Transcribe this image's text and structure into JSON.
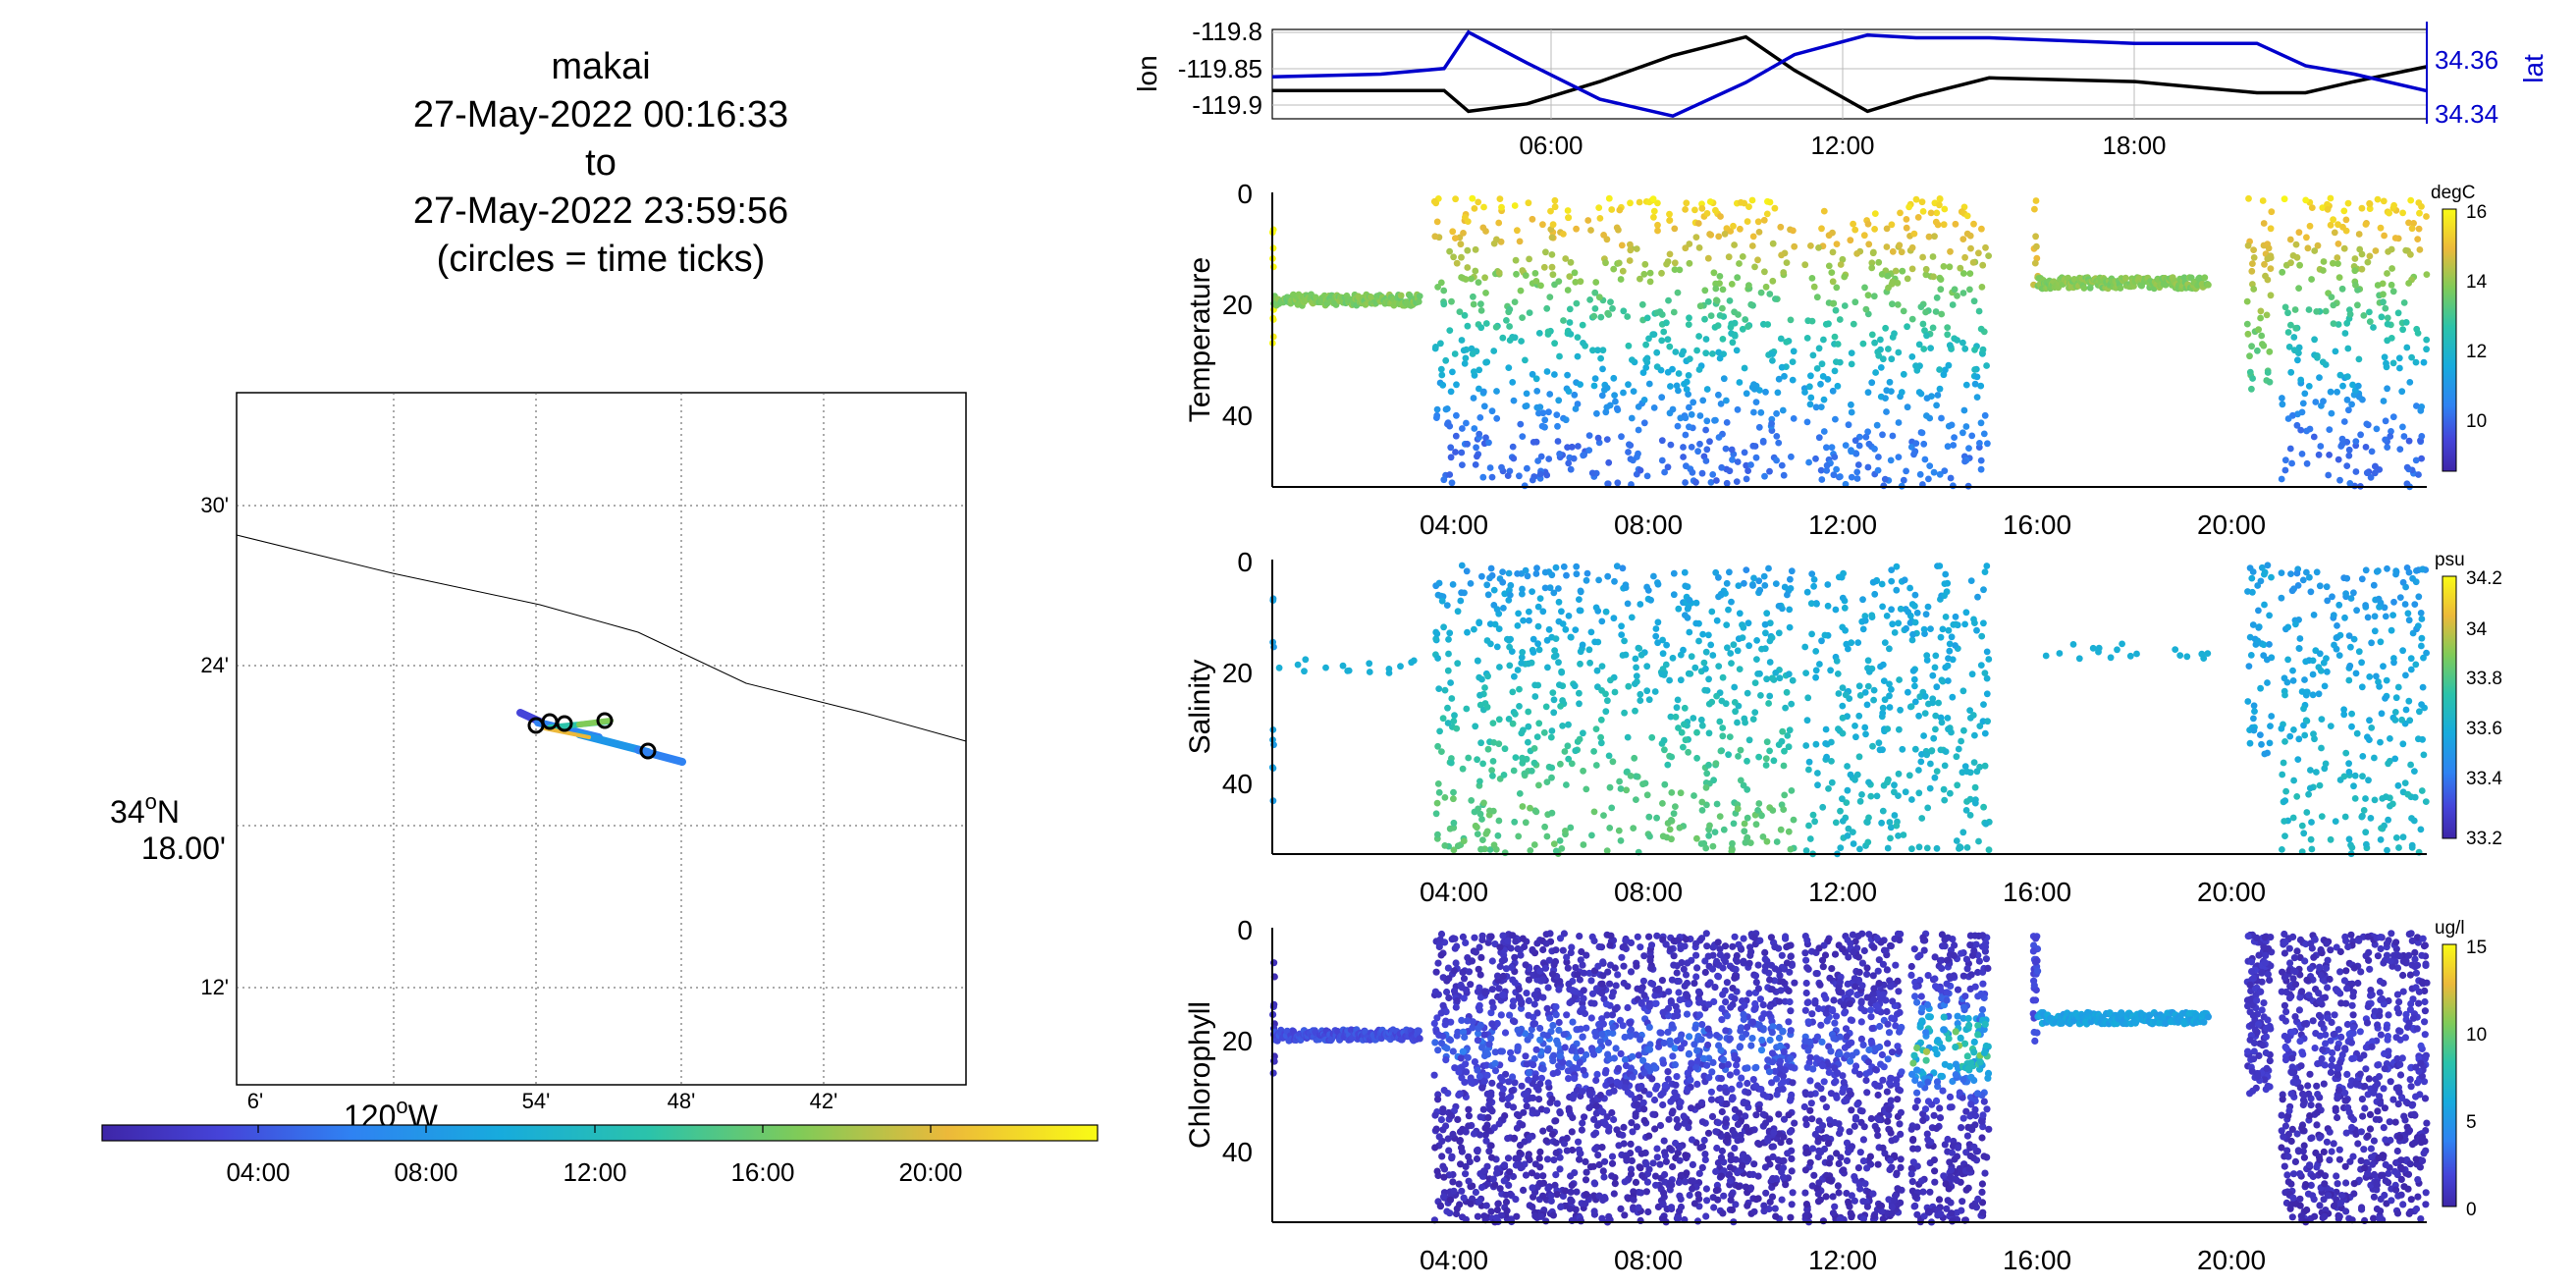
{
  "header": {
    "lines": [
      "makai",
      "27-May-2022 00:16:33",
      "to",
      "27-May-2022 23:59:56",
      "(circles = time ticks)"
    ]
  },
  "map": {
    "lat_tick_labels": [
      "30'",
      "24'",
      "18.00'",
      "12'"
    ],
    "lat_degree_label": "34",
    "lat_hemisphere": "N",
    "lon_tick_labels": [
      "6'",
      "54'",
      "48'",
      "42'"
    ],
    "lon_degree_label": "120",
    "lon_hemisphere": "W",
    "degree_symbol": "o",
    "grid": true,
    "colors": {
      "coastline": "#000000",
      "time_circle": "#000000"
    }
  },
  "time_colorbar": {
    "tick_labels": [
      "04:00",
      "08:00",
      "12:00",
      "16:00",
      "20:00"
    ],
    "colormap": "parula"
  },
  "lonlat": {
    "lon_ticks": [
      "-119.8",
      "-119.85",
      "-119.9"
    ],
    "lat_ticks": [
      "34.36",
      "34.34"
    ],
    "lon_label": "lon",
    "lat_label": "lat",
    "time_ticks": [
      "06:00",
      "12:00",
      "18:00"
    ],
    "colors": {
      "lon": "#000000",
      "lat": "#0000cc"
    }
  },
  "panels": [
    {
      "ylabel": "Temperature",
      "units": "degC",
      "cticks": [
        "16",
        "14",
        "12",
        "10"
      ],
      "yticks": [
        "0",
        "20",
        "40"
      ],
      "xticks": [
        "04:00",
        "08:00",
        "12:00",
        "16:00",
        "20:00"
      ]
    },
    {
      "ylabel": "Salinity",
      "units": "psu",
      "cticks": [
        "34.2",
        "34",
        "33.8",
        "33.6",
        "33.4",
        "33.2"
      ],
      "yticks": [
        "0",
        "20",
        "40"
      ],
      "xticks": [
        "04:00",
        "08:00",
        "12:00",
        "16:00",
        "20:00"
      ]
    },
    {
      "ylabel": "Chlorophyll",
      "units": "ug/l",
      "cticks": [
        "15",
        "10",
        "5",
        "0"
      ],
      "yticks": [
        "0",
        "20",
        "40"
      ],
      "xticks": [
        "04:00",
        "08:00",
        "12:00",
        "16:00",
        "20:00"
      ]
    }
  ],
  "chart_data": [
    {
      "type": "line",
      "x_unit": "hour of day",
      "xlim": [
        0.27,
        23.99
      ],
      "series": [
        {
          "name": "lon",
          "x": [
            0.27,
            2.5,
            3.8,
            4.3,
            5.5,
            7.0,
            8.5,
            10.0,
            11.0,
            12.5,
            13.5,
            15.0,
            18.0,
            20.5,
            21.5,
            22.5,
            23.99
          ],
          "y": [
            -119.872,
            -119.872,
            -119.872,
            -119.9,
            -119.89,
            -119.86,
            -119.825,
            -119.8,
            -119.845,
            -119.9,
            -119.88,
            -119.855,
            -119.86,
            -119.875,
            -119.875,
            -119.86,
            -119.84
          ],
          "ylim": [
            -119.91,
            -119.79
          ]
        },
        {
          "name": "lat",
          "x": [
            0.27,
            2.5,
            3.8,
            4.3,
            5.5,
            7.0,
            8.5,
            10.0,
            11.0,
            12.5,
            13.5,
            15.0,
            18.0,
            20.5,
            21.5,
            22.5,
            23.99
          ],
          "y": [
            34.352,
            34.353,
            34.355,
            34.368,
            34.357,
            34.344,
            34.338,
            34.35,
            34.36,
            34.367,
            34.366,
            34.366,
            34.364,
            34.364,
            34.356,
            34.353,
            34.347
          ],
          "ylim": [
            34.337,
            34.369
          ]
        }
      ]
    },
    {
      "type": "scatter",
      "ylabel": "Temperature",
      "units": "degC",
      "xlim": [
        0.27,
        23.99
      ],
      "ylim": [
        52,
        0
      ],
      "clim": [
        8.5,
        16
      ],
      "segments": [
        {
          "t0": 0.27,
          "t1": 0.3,
          "kind": "profile",
          "surf": 16,
          "deep": 16,
          "dmax": 30
        },
        {
          "t0": 0.3,
          "t1": 3.3,
          "kind": "depth",
          "d": 19,
          "v": 13.8
        },
        {
          "t0": 3.6,
          "t1": 11.0,
          "kind": "profile",
          "surf": 15.8,
          "deep": 10.3,
          "dmax": 52
        },
        {
          "t0": 11.2,
          "t1": 15.0,
          "kind": "profile",
          "surf": 15.8,
          "deep": 10.5,
          "dmax": 52
        },
        {
          "t0": 15.9,
          "t1": 16.0,
          "kind": "profile",
          "surf": 15,
          "deep": 14,
          "dmax": 18
        },
        {
          "t0": 16.0,
          "t1": 19.5,
          "kind": "depth",
          "d": 16,
          "v": 13.9
        },
        {
          "t0": 20.3,
          "t1": 20.8,
          "kind": "profile",
          "surf": 15.5,
          "deep": 12.5,
          "dmax": 35
        },
        {
          "t0": 21.0,
          "t1": 23.99,
          "kind": "profile",
          "surf": 15.8,
          "deep": 10.3,
          "dmax": 52
        }
      ]
    },
    {
      "type": "scatter",
      "ylabel": "Salinity",
      "units": "psu",
      "xlim": [
        0.27,
        23.99
      ],
      "ylim": [
        52,
        0
      ],
      "clim": [
        33.2,
        34.2
      ],
      "segments": [
        {
          "t0": 0.27,
          "t1": 0.3,
          "kind": "profile",
          "surf": 33.6,
          "deep": 33.6,
          "dmax": 52
        },
        {
          "t0": 0.3,
          "t1": 3.3,
          "kind": "sparse",
          "d": 19,
          "v": 33.65
        },
        {
          "t0": 3.6,
          "t1": 11.0,
          "kind": "profile",
          "surf": 33.55,
          "deep": 33.85,
          "dmax": 52
        },
        {
          "t0": 11.2,
          "t1": 15.0,
          "kind": "profile",
          "surf": 33.6,
          "deep": 33.7,
          "dmax": 52
        },
        {
          "t0": 15.9,
          "t1": 19.5,
          "kind": "sparse",
          "d": 16,
          "v": 33.65
        },
        {
          "t0": 20.3,
          "t1": 20.8,
          "kind": "profile",
          "surf": 33.6,
          "deep": 33.6,
          "dmax": 35
        },
        {
          "t0": 21.0,
          "t1": 23.99,
          "kind": "profile",
          "surf": 33.55,
          "deep": 33.7,
          "dmax": 52
        }
      ]
    },
    {
      "type": "scatter",
      "ylabel": "Chlorophyll",
      "units": "ug/l",
      "xlim": [
        0.27,
        23.99
      ],
      "ylim": [
        52,
        0
      ],
      "clim": [
        0,
        15
      ],
      "segments": [
        {
          "t0": 0.27,
          "t1": 0.32,
          "kind": "profile",
          "surf": 1,
          "deep": 1,
          "dmax": 30
        },
        {
          "t0": 0.32,
          "t1": 3.3,
          "kind": "depth",
          "d": 19,
          "v": 2.5
        },
        {
          "t0": 3.6,
          "t1": 11.0,
          "kind": "profile",
          "surf": 0.8,
          "deep": 0.6,
          "dmax": 52,
          "peak": 3.5
        },
        {
          "t0": 11.2,
          "t1": 13.2,
          "kind": "profile",
          "surf": 0.8,
          "deep": 0.6,
          "dmax": 52,
          "peak": 3
        },
        {
          "t0": 13.4,
          "t1": 15.0,
          "kind": "profile",
          "surf": 1,
          "deep": 0.6,
          "dmax": 52,
          "peak": 10
        },
        {
          "t0": 15.9,
          "t1": 16.0,
          "kind": "profile",
          "surf": 2,
          "deep": 3,
          "dmax": 23
        },
        {
          "t0": 16.0,
          "t1": 19.5,
          "kind": "depth",
          "d": 16,
          "v": 6
        },
        {
          "t0": 20.3,
          "t1": 20.8,
          "kind": "profile",
          "surf": 1,
          "deep": 1.5,
          "dmax": 30
        },
        {
          "t0": 21.0,
          "t1": 23.99,
          "kind": "profile",
          "surf": 0.8,
          "deep": 0.6,
          "dmax": 52,
          "peak": 2
        }
      ]
    }
  ]
}
